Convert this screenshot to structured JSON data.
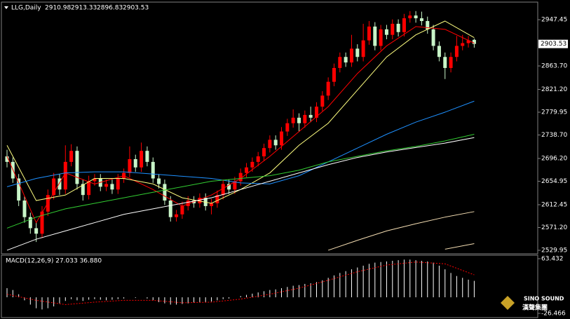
{
  "chart_data": {
    "type": "candlestick",
    "symbol": "LLG,Daily",
    "up_color": "#ff0000",
    "down_color": "#c8f5c8",
    "ylim": [
      2523.6,
      2978
    ],
    "yticks": [
      2947.45,
      {
        "value": 2863.7,
        "label": "2863.70"
      },
      {
        "value": 2821.2,
        "label": "2821.20"
      },
      2779.95,
      {
        "value": 2738.7,
        "label": "2738.70"
      },
      {
        "value": 2696.2,
        "label": "2696.20"
      },
      2654.95,
      2612.45,
      {
        "value": 2571.2,
        "label": "2571.20"
      },
      2529.95
    ],
    "last_price": 2903.53,
    "candles": [
      [
        2700,
        2712,
        2680,
        2690
      ],
      [
        2690,
        2698,
        2652,
        2660
      ],
      [
        2660,
        2668,
        2610,
        2620
      ],
      [
        2620,
        2628,
        2580,
        2590
      ],
      [
        2590,
        2598,
        2560,
        2570
      ],
      [
        2570,
        2580,
        2545,
        2560
      ],
      [
        2560,
        2610,
        2552,
        2600
      ],
      [
        2600,
        2640,
        2592,
        2630
      ],
      [
        2630,
        2670,
        2622,
        2660
      ],
      [
        2660,
        2668,
        2630,
        2640
      ],
      [
        2640,
        2720,
        2632,
        2690
      ],
      [
        2690,
        2722,
        2682,
        2710
      ],
      [
        2710,
        2718,
        2640,
        2650
      ],
      [
        2650,
        2658,
        2620,
        2630
      ],
      [
        2630,
        2665,
        2622,
        2655
      ],
      [
        2655,
        2668,
        2647,
        2660
      ],
      [
        2660,
        2668,
        2637,
        2645
      ],
      [
        2645,
        2658,
        2637,
        2650
      ],
      [
        2650,
        2658,
        2632,
        2640
      ],
      [
        2640,
        2668,
        2632,
        2660
      ],
      [
        2660,
        2678,
        2652,
        2670
      ],
      [
        2670,
        2718,
        2662,
        2695
      ],
      [
        2695,
        2703,
        2672,
        2680
      ],
      [
        2680,
        2725,
        2672,
        2710
      ],
      [
        2710,
        2718,
        2682,
        2690
      ],
      [
        2690,
        2698,
        2652,
        2660
      ],
      [
        2660,
        2668,
        2642,
        2650
      ],
      [
        2650,
        2658,
        2612,
        2620
      ],
      [
        2620,
        2628,
        2582,
        2590
      ],
      [
        2590,
        2603,
        2582,
        2595
      ],
      [
        2595,
        2618,
        2587,
        2610
      ],
      [
        2610,
        2628,
        2602,
        2620
      ],
      [
        2620,
        2628,
        2607,
        2615
      ],
      [
        2615,
        2633,
        2607,
        2625
      ],
      [
        2625,
        2633,
        2602,
        2610
      ],
      [
        2610,
        2623,
        2595,
        2615
      ],
      [
        2615,
        2638,
        2607,
        2630
      ],
      [
        2630,
        2658,
        2622,
        2650
      ],
      [
        2650,
        2658,
        2632,
        2640
      ],
      [
        2640,
        2663,
        2632,
        2655
      ],
      [
        2655,
        2678,
        2647,
        2670
      ],
      [
        2670,
        2688,
        2662,
        2680
      ],
      [
        2680,
        2698,
        2672,
        2690
      ],
      [
        2690,
        2708,
        2682,
        2700
      ],
      [
        2700,
        2723,
        2692,
        2715
      ],
      [
        2715,
        2738,
        2707,
        2730
      ],
      [
        2730,
        2738,
        2712,
        2720
      ],
      [
        2720,
        2753,
        2712,
        2745
      ],
      [
        2745,
        2768,
        2737,
        2760
      ],
      [
        2760,
        2785,
        2752,
        2770
      ],
      [
        2770,
        2778,
        2745,
        2760
      ],
      [
        2760,
        2783,
        2752,
        2775
      ],
      [
        2775,
        2790,
        2762,
        2770
      ],
      [
        2770,
        2798,
        2762,
        2790
      ],
      [
        2790,
        2818,
        2782,
        2810
      ],
      [
        2810,
        2843,
        2802,
        2835
      ],
      [
        2835,
        2868,
        2827,
        2860
      ],
      [
        2860,
        2888,
        2852,
        2880
      ],
      [
        2880,
        2888,
        2862,
        2870
      ],
      [
        2870,
        2920,
        2862,
        2895
      ],
      [
        2895,
        2903,
        2872,
        2880
      ],
      [
        2880,
        2940,
        2872,
        2910
      ],
      [
        2910,
        2945,
        2902,
        2935
      ],
      [
        2935,
        2943,
        2892,
        2900
      ],
      [
        2900,
        2938,
        2892,
        2930
      ],
      [
        2930,
        2938,
        2912,
        2920
      ],
      [
        2920,
        2948,
        2912,
        2940
      ],
      [
        2940,
        2948,
        2917,
        2925
      ],
      [
        2925,
        2958,
        2917,
        2950
      ],
      [
        2950,
        2963,
        2942,
        2955
      ],
      [
        2955,
        2963,
        2942,
        2950
      ],
      [
        2950,
        2962,
        2937,
        2945
      ],
      [
        2945,
        2953,
        2922,
        2930
      ],
      [
        2930,
        2938,
        2892,
        2900
      ],
      [
        2900,
        2908,
        2872,
        2880
      ],
      [
        2880,
        2888,
        2840,
        2860
      ],
      [
        2860,
        2888,
        2852,
        2880
      ],
      [
        2880,
        2918,
        2872,
        2900
      ],
      [
        2900,
        2920,
        2892,
        2905
      ],
      [
        2905,
        2918,
        2897,
        2910
      ],
      [
        2910.98,
        2913.33,
        2896.83,
        2903.53
      ]
    ],
    "ma_x": [
      0,
      5,
      10,
      15,
      20,
      25,
      30,
      35,
      40,
      45,
      50,
      55,
      60,
      65,
      70,
      75,
      80
    ],
    "ma_series": [
      {
        "color": "#ff0000",
        "values": [
          2700,
          2580,
          2670,
          2650,
          2665,
          2640,
          2610,
          2630,
          2660,
          2700,
          2745,
          2790,
          2850,
          2900,
          2935,
          2930,
          2905
        ]
      },
      {
        "color": "#ffff80",
        "values": [
          2720,
          2620,
          2630,
          2660,
          2660,
          2650,
          2625,
          2615,
          2640,
          2670,
          2720,
          2760,
          2820,
          2880,
          2920,
          2945,
          2915
        ]
      },
      {
        "color": "#1e90ff",
        "values": [
          2645,
          2660,
          2670,
          2672,
          2672,
          2668,
          2664,
          2660,
          2652,
          2650,
          2665,
          2690,
          2715,
          2740,
          2762,
          2780,
          2800
        ]
      },
      {
        "color": "#32cd32",
        "values": [
          2570,
          2590,
          2605,
          2615,
          2625,
          2635,
          2645,
          2655,
          2660,
          2665,
          2675,
          2690,
          2700,
          2710,
          2718,
          2728,
          2740
        ]
      },
      {
        "color": "#ffffff",
        "values": [
          2530,
          2550,
          2565,
          2580,
          2595,
          2605,
          2615,
          2625,
          2640,
          2655,
          2670,
          2685,
          2698,
          2708,
          2716,
          2724,
          2734
        ]
      },
      {
        "color": "#f5deb3",
        "values": [
          null,
          null,
          null,
          null,
          null,
          null,
          null,
          null,
          null,
          null,
          null,
          2530,
          2548,
          2565,
          2578,
          2590,
          2600
        ]
      },
      {
        "color": "#f5deb3",
        "values": [
          null,
          null,
          null,
          null,
          null,
          null,
          null,
          null,
          null,
          null,
          null,
          null,
          null,
          null,
          null,
          2532,
          2542
        ]
      }
    ],
    "macd": {
      "label": "MACD(12,26,9) 27.033 36.880",
      "ylim": [
        -32.23,
        68.04
      ],
      "yticks": [
        63.432,
        -26.466
      ],
      "hist_color": "#ffffff",
      "signal_color": "#ff0000",
      "histogram": [
        15,
        12,
        5,
        -5,
        -12,
        -18,
        -20,
        -18,
        -15,
        -10,
        -6,
        -3,
        -5,
        -6,
        -4,
        -3,
        -4,
        -5,
        -4,
        -3,
        -2,
        0,
        -1,
        0,
        -2,
        -5,
        -8,
        -10,
        -12,
        -12,
        -11,
        -10,
        -9,
        -8,
        -8,
        -7,
        -5,
        -3,
        -2,
        0,
        2,
        4,
        6,
        8,
        10,
        12,
        13,
        15,
        17,
        19,
        20,
        22,
        23,
        25,
        28,
        32,
        36,
        40,
        43,
        46,
        49,
        52,
        55,
        57,
        58,
        59,
        60,
        61,
        62,
        62,
        61,
        60,
        59,
        57,
        52,
        46,
        40,
        35,
        32,
        29,
        27.033
      ],
      "signal": [
        5,
        -5,
        -12,
        -8,
        -5,
        -5,
        -9,
        -8,
        -3,
        5,
        15,
        28,
        42,
        53,
        58,
        55,
        36.88
      ]
    },
    "watermark": {
      "en": "SINO SOUND",
      "zh": "漢聲集團"
    }
  }
}
